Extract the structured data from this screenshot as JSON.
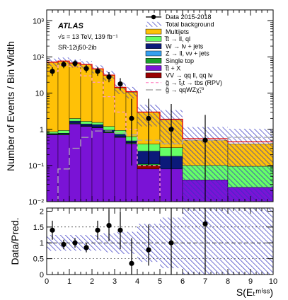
{
  "chart_data": [
    {
      "type": "stacked-histogram",
      "xlim": [
        0,
        10
      ],
      "ylim": [
        0.01,
        2000
      ],
      "yscale": "log",
      "ylabel": "Number of Events / Bin Width",
      "ytick_labels": [
        "10⁻²",
        "10⁻¹",
        "1",
        "10",
        "10²",
        "10³"
      ],
      "ytick_values": [
        0.01,
        0.1,
        1,
        10,
        100,
        1000
      ],
      "bin_edges": [
        0,
        0.5,
        1,
        1.5,
        2,
        2.5,
        3,
        3.5,
        4,
        5,
        6,
        8,
        10
      ],
      "annotation": {
        "experiment": "ATLAS",
        "energy": "√s = 13 TeV, 139 fb⁻¹",
        "region": "SR-12ij50-2ib"
      },
      "series": [
        {
          "name": "t̅t + X",
          "color": "#7a13d6",
          "values": [
            0.7,
            0.7,
            1.4,
            1.2,
            1.1,
            0.8,
            0.6,
            0.4,
            0.08,
            0.08,
            0.04,
            0.025
          ]
        },
        {
          "name": "VV → qq ll, qq lν",
          "color": "#990000",
          "values": [
            0,
            0,
            0,
            0,
            0,
            0,
            0,
            0,
            0.02,
            0,
            0,
            0
          ]
        },
        {
          "name": "Single top",
          "color": "#1a9e2a",
          "values": [
            0.02,
            0.03,
            0.05,
            0.03,
            0.03,
            0.03,
            0.02,
            0.02,
            0.01,
            0,
            0,
            0
          ]
        },
        {
          "name": "Z → ll, νν + jets",
          "color": "#35a0f0",
          "values": [
            0.02,
            0.02,
            0.04,
            0.03,
            0.02,
            0.02,
            0.01,
            0.01,
            0,
            0,
            0,
            0
          ]
        },
        {
          "name": "W → lν + jets",
          "color": "#0b1a7a",
          "values": [
            0.02,
            0.03,
            0.2,
            0.15,
            0.2,
            0.1,
            0.1,
            0.05,
            0.14,
            0.1,
            0,
            0
          ]
        },
        {
          "name": "t̅t → ll, ql",
          "color": "#66ff66",
          "values": [
            0.1,
            0.15,
            0.3,
            0.25,
            0.2,
            0.25,
            0.2,
            0.15,
            0.14,
            0.13,
            0.06,
            0.07
          ]
        },
        {
          "name": "Multijets",
          "color": "#ffc107",
          "values": [
            70,
            75,
            65,
            60,
            45,
            30,
            13,
            10,
            2.6,
            1.5,
            0.4,
            0.3
          ]
        }
      ],
      "total_background": [
        72,
        77,
        68,
        62,
        47,
        31.5,
        14.5,
        11,
        3,
        1.9,
        0.55,
        0.45
      ],
      "uncertainty_band": {
        "name": "Total background",
        "relative_error": [
          0.25,
          0.25,
          0.25,
          0.25,
          0.25,
          0.3,
          0.35,
          0.35,
          0.6,
          0.8,
          1.1,
          1.3
        ]
      },
      "signals": [
        {
          "name": "g̃ → t̃₁t → tbs (RPV)",
          "color": "#ff99cc",
          "dash": "4,3",
          "values": [
            40,
            60,
            55,
            30,
            20,
            8,
            3,
            1,
            0.1,
            0.01,
            0.01,
            0.01
          ]
        },
        {
          "name": "g̃ → qqWZχ̃₁⁰",
          "color": "#aaaaaa",
          "dash": "10,4",
          "values": [
            0.01,
            0.08,
            0.3,
            0.6,
            0.9,
            0.9,
            0.8,
            0.7,
            0.5,
            0.4,
            0.5,
            0.6
          ]
        }
      ],
      "data": {
        "name": "Data 2015-2018",
        "x": [
          0.25,
          0.75,
          1.25,
          1.75,
          2.25,
          2.75,
          3.25,
          3.75,
          4.5,
          5.5,
          7
        ],
        "y": [
          40,
          62,
          66,
          48,
          40,
          28,
          18,
          2,
          2,
          1,
          0.5
        ],
        "err_up": [
          12,
          15,
          15,
          13,
          12,
          10,
          8,
          5,
          5,
          4,
          2
        ],
        "err_down": [
          10,
          13,
          13,
          11,
          10,
          8,
          6,
          1.9,
          1.9,
          0.99,
          0.495
        ]
      },
      "legend": [
        {
          "label": "Data 2015-2018",
          "kind": "data"
        },
        {
          "label": "Total background",
          "kind": "hatch"
        },
        {
          "label": "Multijets",
          "kind": "fill",
          "color": "#ffc107"
        },
        {
          "label": "t̅t → ll, ql",
          "kind": "fill",
          "color": "#66ff66"
        },
        {
          "label": "W → lν + jets",
          "kind": "fill",
          "color": "#0b1a7a"
        },
        {
          "label": "Z → ll, νν + jets",
          "kind": "fill",
          "color": "#35a0f0"
        },
        {
          "label": "Single top",
          "kind": "fill",
          "color": "#1a9e2a"
        },
        {
          "label": "t̅t + X",
          "kind": "fill",
          "color": "#7a13d6"
        },
        {
          "label": "VV → qq ll, qq lν",
          "kind": "fill",
          "color": "#990000"
        },
        {
          "label": "g̃ → t̃₁t → tbs (RPV)",
          "kind": "line",
          "color": "#ff99cc",
          "dash": "4,3"
        },
        {
          "label": "g̃ → qqWZχ̃₁⁰",
          "kind": "line",
          "color": "#aaaaaa",
          "dash": "10,4"
        }
      ]
    },
    {
      "type": "ratio",
      "xlim": [
        0,
        10
      ],
      "ylim": [
        0,
        2.1
      ],
      "ylabel": "Data/Pred.",
      "xlabel": "S(Eₜᵐⁱˢˢ)",
      "ytick_values": [
        0,
        0.5,
        1,
        1.5,
        2
      ],
      "ytick_labels": [
        "0",
        "0.5",
        "1",
        "1.5",
        "2"
      ],
      "xtick_values": [
        0,
        1,
        2,
        3,
        4,
        5,
        6,
        7,
        8,
        9,
        10
      ],
      "xtick_labels": [
        "0",
        "1",
        "2",
        "3",
        "4",
        "5",
        "6",
        "7",
        "8",
        "9",
        "10"
      ],
      "band_rel_error": [
        0.25,
        0.25,
        0.25,
        0.25,
        0.25,
        0.3,
        0.35,
        0.35,
        0.6,
        0.8,
        1.1,
        1.3
      ],
      "x": [
        0.25,
        0.75,
        1.25,
        1.75,
        2.25,
        2.75,
        3.25,
        3.75,
        4.5,
        5.5,
        7
      ],
      "y": [
        1.4,
        0.95,
        1.0,
        0.85,
        1.4,
        1.55,
        1.4,
        0.35,
        0.78,
        1.0,
        1.6
      ],
      "err_up": [
        0.3,
        0.15,
        0.15,
        0.15,
        0.3,
        0.5,
        0.6,
        0.8,
        0.8,
        2,
        2
      ],
      "err_down": [
        0.3,
        0.15,
        0.15,
        0.15,
        0.3,
        0.5,
        0.6,
        0.35,
        0.5,
        1,
        1.6
      ]
    }
  ]
}
